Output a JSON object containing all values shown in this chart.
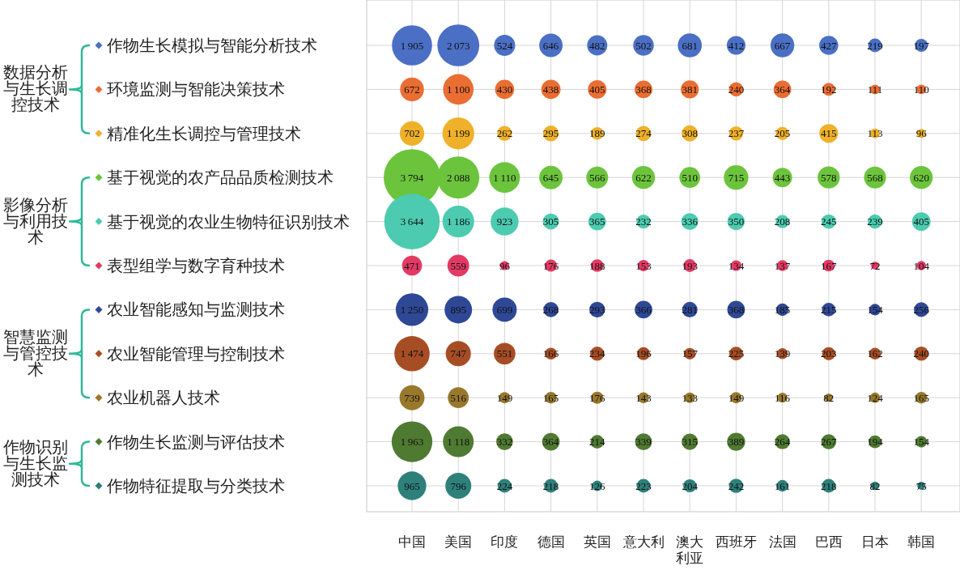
{
  "chart_data": {
    "type": "heatmap",
    "categories": [
      "中国",
      "美国",
      "印度",
      "德国",
      "英国",
      "意大利",
      "澳大利亚",
      "西班牙",
      "法国",
      "巴西",
      "日本",
      "韩国"
    ],
    "y_categories": [
      "作物生长模拟与智能分析技术",
      "环境监测与智能决策技术",
      "精准化生长调控与管理技术",
      "基于视觉的农产品品质检测技术",
      "基于视觉的农业生物特征识别技术",
      "表型组学与数字育种技术",
      "农业智能感知与监测技术",
      "农业智能管理与控制技术",
      "农业机器人技术",
      "作物生长监测与评估技术",
      "作物特征提取与分类技术"
    ],
    "colors": [
      "#4a6fc4",
      "#ea6d32",
      "#efb02a",
      "#6cc43c",
      "#4ccbb0",
      "#e23a64",
      "#2f4896",
      "#a74d24",
      "#98782a",
      "#4f7a32",
      "#2e807b"
    ],
    "grid": true,
    "data_labels": true,
    "cells": [
      [
        1905,
        2073,
        524,
        646,
        482,
        502,
        681,
        412,
        667,
        427,
        219,
        197
      ],
      [
        672,
        1100,
        430,
        438,
        405,
        368,
        381,
        240,
        364,
        192,
        111,
        110
      ],
      [
        702,
        1199,
        262,
        295,
        189,
        274,
        308,
        237,
        205,
        415,
        113,
        96
      ],
      [
        3794,
        2088,
        1110,
        645,
        566,
        622,
        510,
        715,
        443,
        578,
        568,
        620
      ],
      [
        3644,
        1186,
        923,
        305,
        365,
        232,
        336,
        350,
        208,
        245,
        239,
        405
      ],
      [
        471,
        559,
        96,
        176,
        188,
        153,
        193,
        134,
        137,
        167,
        72,
        104
      ],
      [
        1250,
        895,
        699,
        268,
        293,
        366,
        281,
        368,
        185,
        215,
        154,
        256
      ],
      [
        1474,
        747,
        551,
        166,
        234,
        196,
        157,
        225,
        139,
        203,
        162,
        240
      ],
      [
        739,
        516,
        149,
        165,
        176,
        143,
        133,
        149,
        116,
        82,
        124,
        165
      ],
      [
        1963,
        1118,
        332,
        364,
        214,
        339,
        315,
        389,
        264,
        267,
        194,
        154
      ],
      [
        965,
        796,
        224,
        218,
        126,
        223,
        204,
        242,
        161,
        218,
        82,
        75
      ]
    ],
    "y2_categories": [
      null,
      "数据分析与生长调控技术",
      null,
      null,
      "影像分析与利用技术",
      null,
      null,
      "智慧监测与管控技术",
      null,
      "作物识别与生长监测技术",
      null
    ]
  }
}
